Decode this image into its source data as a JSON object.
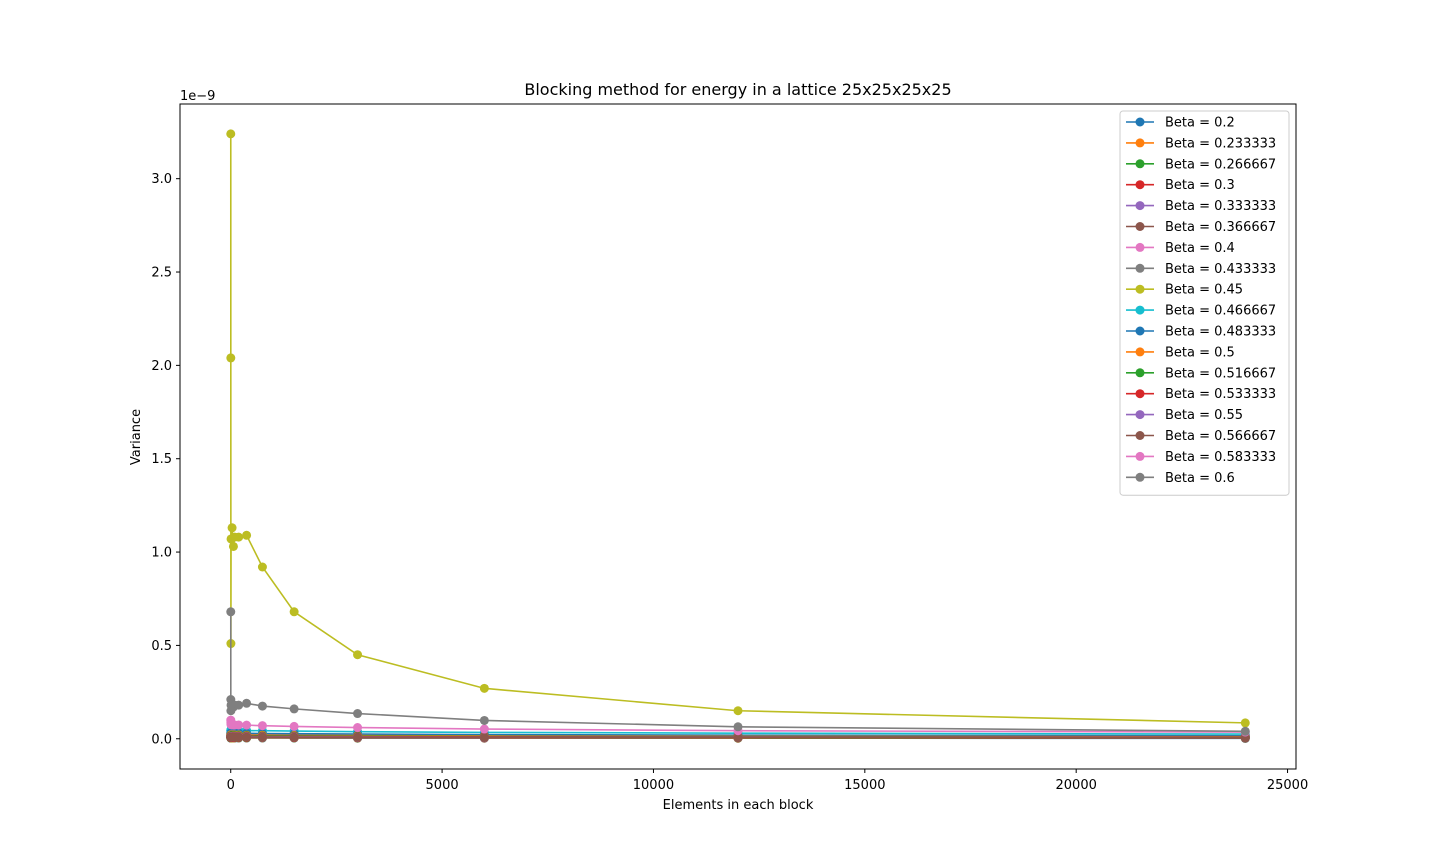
{
  "chart_data": {
    "type": "line",
    "title": "Blocking method for energy in a lattice 25x25x25x25",
    "xlabel": "Elements in each block",
    "ylabel": "Variance",
    "y_offset_label": "1e−9",
    "y_scale_exponent": -9,
    "xlim": [
      -1200,
      25200
    ],
    "ylim": [
      -0.162,
      3.4
    ],
    "x_ticks": [
      0,
      5000,
      10000,
      15000,
      20000,
      25000
    ],
    "y_ticks": [
      0.0,
      0.5,
      1.0,
      1.5,
      2.0,
      2.5,
      3.0
    ],
    "x_tick_labels": [
      "0",
      "5000",
      "10000",
      "15000",
      "20000",
      "25000"
    ],
    "y_tick_labels": [
      "0.0",
      "0.5",
      "1.0",
      "1.5",
      "2.0",
      "2.5",
      "3.0"
    ],
    "grid": false,
    "legend_position": "top-right",
    "marker": "circle",
    "x": [
      1,
      2,
      4,
      8,
      16,
      32,
      64,
      94,
      188,
      375,
      750,
      1500,
      3000,
      6000,
      12000,
      24000
    ],
    "series": [
      {
        "name": "Beta = 0.2",
        "color": "#1f77b4",
        "values": [
          0.004,
          0.004,
          0.004,
          0.004,
          0.004,
          0.004,
          0.004,
          0.004,
          0.004,
          0.004,
          0.004,
          0.004,
          0.003,
          0.003,
          0.003,
          0.002
        ]
      },
      {
        "name": "Beta = 0.233333",
        "color": "#ff7f0e",
        "values": [
          0.005,
          0.005,
          0.005,
          0.005,
          0.005,
          0.005,
          0.005,
          0.005,
          0.005,
          0.005,
          0.005,
          0.005,
          0.004,
          0.004,
          0.003,
          0.003
        ]
      },
      {
        "name": "Beta = 0.266667",
        "color": "#2ca02c",
        "values": [
          0.006,
          0.006,
          0.006,
          0.006,
          0.006,
          0.006,
          0.006,
          0.006,
          0.006,
          0.006,
          0.006,
          0.005,
          0.005,
          0.005,
          0.004,
          0.003
        ]
      },
      {
        "name": "Beta = 0.3",
        "color": "#d62728",
        "values": [
          0.007,
          0.007,
          0.007,
          0.007,
          0.007,
          0.007,
          0.007,
          0.007,
          0.007,
          0.007,
          0.007,
          0.006,
          0.006,
          0.005,
          0.005,
          0.004
        ]
      },
      {
        "name": "Beta = 0.333333",
        "color": "#9467bd",
        "values": [
          0.009,
          0.009,
          0.009,
          0.009,
          0.009,
          0.009,
          0.009,
          0.009,
          0.009,
          0.009,
          0.008,
          0.008,
          0.007,
          0.006,
          0.006,
          0.005
        ]
      },
      {
        "name": "Beta = 0.366667",
        "color": "#8c564b",
        "values": [
          0.011,
          0.011,
          0.011,
          0.011,
          0.011,
          0.011,
          0.011,
          0.011,
          0.011,
          0.011,
          0.01,
          0.01,
          0.009,
          0.008,
          0.007,
          0.006
        ]
      },
      {
        "name": "Beta = 0.4",
        "color": "#e377c2",
        "values": [
          0.015,
          0.015,
          0.015,
          0.015,
          0.015,
          0.015,
          0.015,
          0.015,
          0.015,
          0.015,
          0.014,
          0.013,
          0.012,
          0.011,
          0.009,
          0.008
        ]
      },
      {
        "name": "Beta = 0.433333",
        "color": "#7f7f7f",
        "values": [
          0.022,
          0.022,
          0.022,
          0.022,
          0.022,
          0.022,
          0.022,
          0.022,
          0.022,
          0.022,
          0.021,
          0.02,
          0.018,
          0.016,
          0.013,
          0.011
        ]
      },
      {
        "name": "Beta = 0.45",
        "color": "#bcbd22",
        "values": [
          3.24,
          2.04,
          0.51,
          1.07,
          1.07,
          1.13,
          1.03,
          1.08,
          1.08,
          1.09,
          0.92,
          0.68,
          0.45,
          0.27,
          0.15,
          0.085
        ]
      },
      {
        "name": "Beta = 0.466667",
        "color": "#17becf",
        "values": [
          0.045,
          0.045,
          0.045,
          0.045,
          0.045,
          0.045,
          0.045,
          0.045,
          0.045,
          0.044,
          0.043,
          0.041,
          0.038,
          0.034,
          0.03,
          0.025
        ]
      },
      {
        "name": "Beta = 0.483333",
        "color": "#1f77b4",
        "values": [
          0.03,
          0.03,
          0.03,
          0.03,
          0.03,
          0.03,
          0.03,
          0.03,
          0.03,
          0.029,
          0.028,
          0.027,
          0.025,
          0.022,
          0.019,
          0.016
        ]
      },
      {
        "name": "Beta = 0.5",
        "color": "#ff7f0e",
        "values": [
          0.02,
          0.02,
          0.02,
          0.02,
          0.02,
          0.02,
          0.02,
          0.02,
          0.02,
          0.019,
          0.019,
          0.018,
          0.017,
          0.015,
          0.013,
          0.011
        ]
      },
      {
        "name": "Beta = 0.516667",
        "color": "#2ca02c",
        "values": [
          0.016,
          0.016,
          0.016,
          0.016,
          0.016,
          0.016,
          0.016,
          0.016,
          0.016,
          0.016,
          0.015,
          0.015,
          0.014,
          0.012,
          0.011,
          0.009
        ]
      },
      {
        "name": "Beta = 0.533333",
        "color": "#d62728",
        "values": [
          0.013,
          0.013,
          0.013,
          0.013,
          0.013,
          0.013,
          0.013,
          0.013,
          0.013,
          0.013,
          0.012,
          0.012,
          0.011,
          0.01,
          0.009,
          0.008
        ]
      },
      {
        "name": "Beta = 0.55",
        "color": "#9467bd",
        "values": [
          0.011,
          0.011,
          0.011,
          0.011,
          0.011,
          0.011,
          0.011,
          0.011,
          0.011,
          0.011,
          0.01,
          0.01,
          0.009,
          0.008,
          0.007,
          0.006
        ]
      },
      {
        "name": "Beta = 0.566667",
        "color": "#8c564b",
        "values": [
          0.009,
          0.009,
          0.009,
          0.009,
          0.009,
          0.009,
          0.009,
          0.009,
          0.009,
          0.009,
          0.009,
          0.008,
          0.008,
          0.007,
          0.006,
          0.005
        ]
      },
      {
        "name": "Beta = 0.583333",
        "color": "#e377c2",
        "values": [
          0.1,
          0.09,
          0.08,
          0.075,
          0.075,
          0.075,
          0.074,
          0.074,
          0.074,
          0.073,
          0.07,
          0.066,
          0.06,
          0.052,
          0.043,
          0.036
        ]
      },
      {
        "name": "Beta = 0.6",
        "color": "#7f7f7f",
        "values": [
          0.68,
          0.21,
          0.15,
          0.18,
          0.18,
          0.18,
          0.17,
          0.18,
          0.18,
          0.19,
          0.175,
          0.16,
          0.135,
          0.098,
          0.064,
          0.04
        ]
      }
    ]
  }
}
